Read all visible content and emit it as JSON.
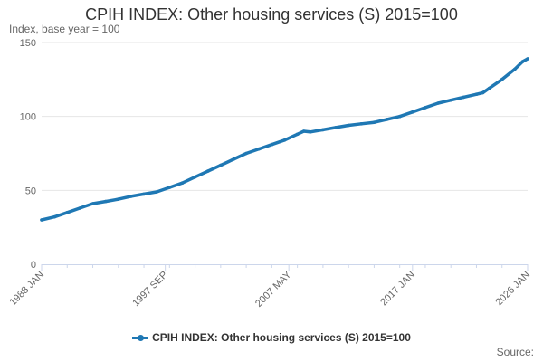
{
  "chart_data": {
    "type": "line",
    "title": "CPIH INDEX: Other housing services (S) 2015=100",
    "ylabel": "Index, base year = 100",
    "xlabel": "",
    "ylim": [
      0,
      150
    ],
    "y_ticks": [
      0,
      50,
      100,
      150
    ],
    "x_tick_labels": [
      "1988 JAN",
      "1997 SEP",
      "2007 MAY",
      "2017 JAN",
      "2026 JAN"
    ],
    "x_tick_years": [
      1988.0,
      1997.67,
      2007.33,
      2017.0,
      2026.0
    ],
    "grid": true,
    "legend_position": "bottom",
    "series": [
      {
        "name": "CPIH INDEX: Other housing services (S) 2015=100",
        "color": "#1f78b4",
        "points": [
          [
            1988.0,
            30
          ],
          [
            1989.0,
            32
          ],
          [
            1990.0,
            35
          ],
          [
            1991.0,
            38
          ],
          [
            1992.0,
            41
          ],
          [
            1993.0,
            42.5
          ],
          [
            1994.0,
            44
          ],
          [
            1995.0,
            46
          ],
          [
            1996.0,
            47.5
          ],
          [
            1997.0,
            49
          ],
          [
            1998.0,
            52
          ],
          [
            1999.0,
            55
          ],
          [
            2000.0,
            59
          ],
          [
            2001.0,
            63
          ],
          [
            2002.0,
            67
          ],
          [
            2003.0,
            71
          ],
          [
            2004.0,
            75
          ],
          [
            2005.0,
            78
          ],
          [
            2006.0,
            81
          ],
          [
            2007.0,
            84
          ],
          [
            2008.0,
            88
          ],
          [
            2008.5,
            90
          ],
          [
            2009.0,
            89.5
          ],
          [
            2010.0,
            91
          ],
          [
            2011.0,
            92.5
          ],
          [
            2012.0,
            94
          ],
          [
            2013.0,
            95
          ],
          [
            2014.0,
            96
          ],
          [
            2015.0,
            98
          ],
          [
            2016.0,
            100
          ],
          [
            2017.0,
            103
          ],
          [
            2018.0,
            106
          ],
          [
            2019.0,
            109
          ],
          [
            2020.0,
            111
          ],
          [
            2021.0,
            113
          ],
          [
            2022.0,
            115
          ],
          [
            2022.5,
            116
          ],
          [
            2023.0,
            119
          ],
          [
            2024.0,
            125
          ],
          [
            2025.0,
            132
          ],
          [
            2025.6,
            137
          ],
          [
            2026.0,
            139
          ]
        ]
      }
    ]
  },
  "legend": {
    "label": "CPIH INDEX: Other housing services (S) 2015=100"
  },
  "source": {
    "label": "Source:"
  }
}
